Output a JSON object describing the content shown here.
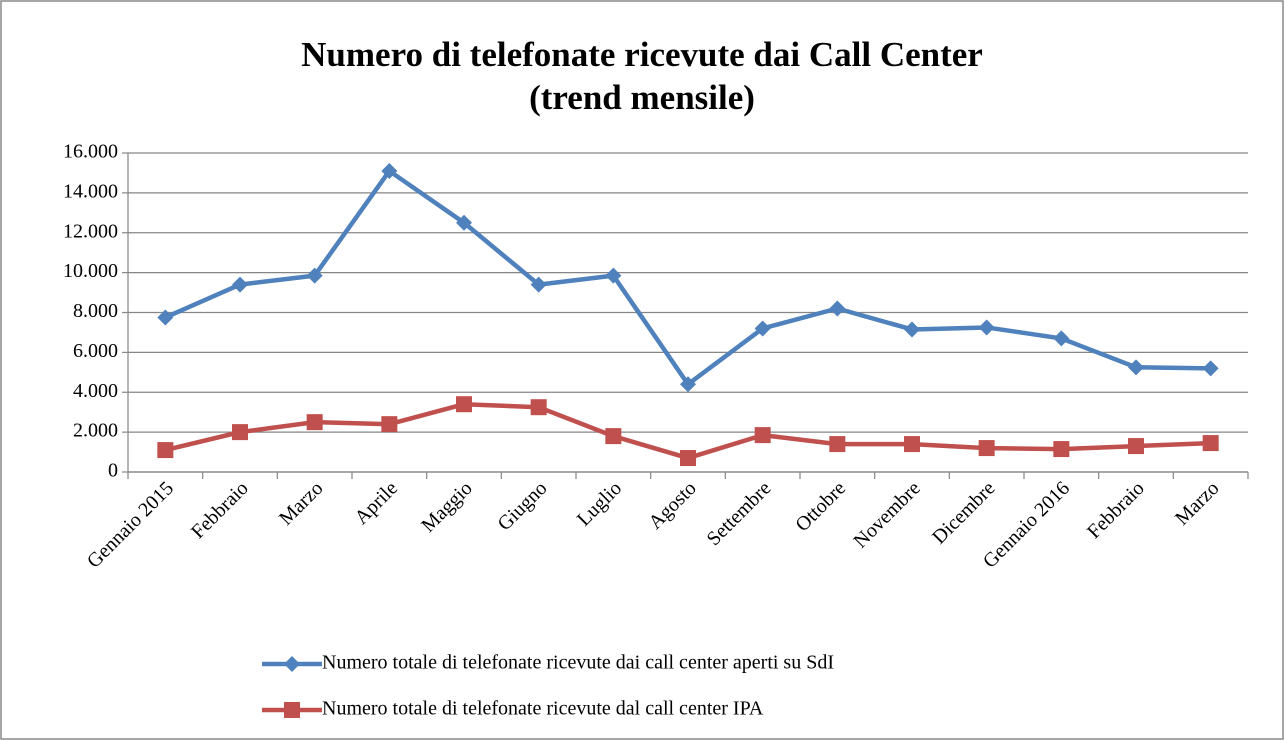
{
  "chart_data": {
    "type": "line",
    "title": [
      "Numero di telefonate ricevute dai Call Center",
      "(trend mensile)"
    ],
    "categories": [
      "Gennaio 2015",
      "Febbraio",
      "Marzo",
      "Aprile",
      "Maggio",
      "Giugno",
      "Luglio",
      "Agosto",
      "Settembre",
      "Ottobre",
      "Novembre",
      "Dicembre",
      "Gennaio 2016",
      "Febbraio",
      "Marzo"
    ],
    "series": [
      {
        "name": "Numero totale di telefonate ricevute dai call center aperti su SdI",
        "color": "#4f81bd",
        "marker": "diamond",
        "values": [
          7750,
          9400,
          9850,
          15100,
          12500,
          9400,
          9850,
          4400,
          7200,
          8200,
          7150,
          7250,
          6700,
          5250,
          5200
        ]
      },
      {
        "name": "Numero totale di telefonate ricevute dal call center IPA",
        "color": "#c0504d",
        "marker": "square",
        "values": [
          1100,
          2000,
          2500,
          2400,
          3400,
          3250,
          1800,
          700,
          1850,
          1400,
          1400,
          1200,
          1150,
          1300,
          1450
        ]
      }
    ],
    "ylim": [
      0,
      16000
    ],
    "yticks": [
      0,
      {
        "value": 2000,
        "label": "2.000"
      },
      {
        "value": 4000,
        "label": "4.000"
      },
      {
        "value": 6000,
        "label": "6.000"
      },
      {
        "value": 8000,
        "label": "8.000"
      },
      {
        "value": 10000,
        "label": "10.000"
      },
      {
        "value": 12000,
        "label": "12.000"
      },
      {
        "value": 14000,
        "label": "14.000"
      },
      {
        "value": 16000,
        "label": "16.000"
      }
    ],
    "grid": true,
    "legend": "bottom"
  }
}
